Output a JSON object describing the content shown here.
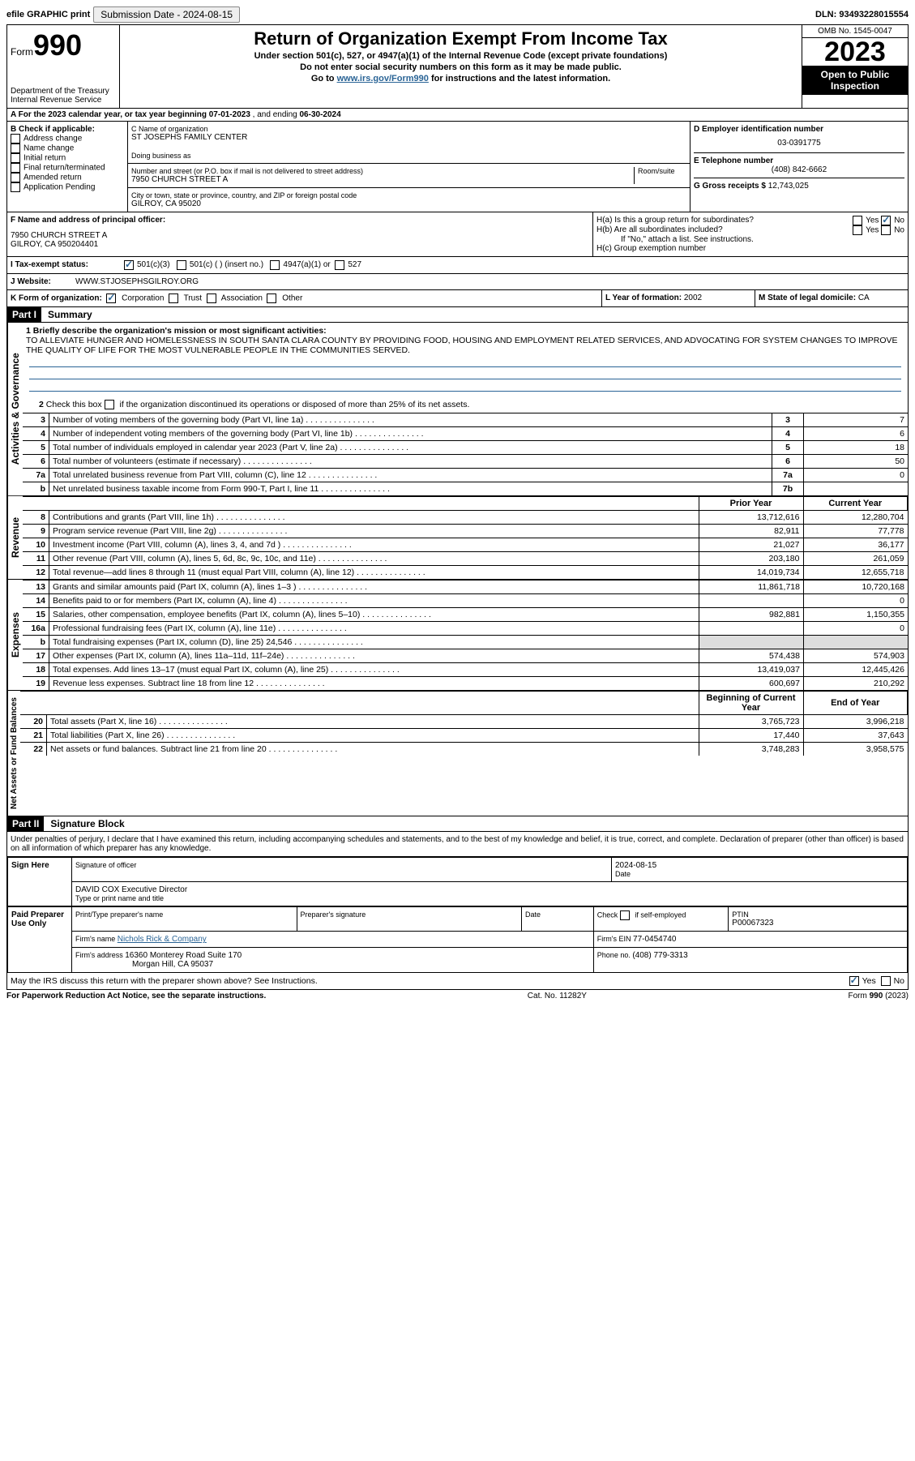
{
  "topbar": {
    "efile_label": "efile GRAPHIC print",
    "submission_label": "Submission Date - 2024-08-15",
    "dln_label": "DLN: 93493228015554"
  },
  "header": {
    "form_label": "Form",
    "form_number": "990",
    "dept": "Department of the Treasury",
    "irs": "Internal Revenue Service",
    "title": "Return of Organization Exempt From Income Tax",
    "subtitle1": "Under section 501(c), 527, or 4947(a)(1) of the Internal Revenue Code (except private foundations)",
    "subtitle2": "Do not enter social security numbers on this form as it may be made public.",
    "subtitle3": "Go to www.irs.gov/Form990 for instructions and the latest information.",
    "omb": "OMB No. 1545-0047",
    "year": "2023",
    "inspection": "Open to Public Inspection"
  },
  "section_a": {
    "text_prefix": "A  For the 2023 calendar year, or tax year beginning ",
    "begin": "07-01-2023",
    "mid": " , and ending ",
    "end": "06-30-2024"
  },
  "section_b": {
    "label": "B Check if applicable:",
    "opts": [
      "Address change",
      "Name change",
      "Initial return",
      "Final return/terminated",
      "Amended return",
      "Application Pending"
    ]
  },
  "section_c": {
    "name_label": "C Name of organization",
    "name": "ST JOSEPHS FAMILY CENTER",
    "dba_label": "Doing business as",
    "addr_label": "Number and street (or P.O. box if mail is not delivered to street address)",
    "room_label": "Room/suite",
    "addr": "7950 CHURCH STREET A",
    "city_label": "City or town, state or province, country, and ZIP or foreign postal code",
    "city": "GILROY, CA  95020"
  },
  "section_d": {
    "label": "D Employer identification number",
    "ein": "03-0391775"
  },
  "section_e": {
    "label": "E Telephone number",
    "phone": "(408) 842-6662"
  },
  "section_g": {
    "label": "G Gross receipts $",
    "val": "12,743,025"
  },
  "section_f": {
    "label": "F Name and address of principal officer:",
    "addr1": "7950 CHURCH STREET A",
    "addr2": "GILROY, CA  950204401"
  },
  "section_h": {
    "a_label": "H(a)  Is this a group return for subordinates?",
    "b_label": "H(b)  Are all subordinates included?",
    "b_note": "If \"No,\" attach a list. See instructions.",
    "c_label": "H(c)  Group exemption number ",
    "yes": "Yes",
    "no": "No"
  },
  "section_i": {
    "label": "I  Tax-exempt status:",
    "opt1": "501(c)(3)",
    "opt2": "501(c) (  ) (insert no.)",
    "opt3": "4947(a)(1) or",
    "opt4": "527"
  },
  "section_j": {
    "label": "J  Website: ",
    "url": "WWW.STJOSEPHSGILROY.ORG"
  },
  "section_k": {
    "label": "K Form of organization:",
    "opts": [
      "Corporation",
      "Trust",
      "Association",
      "Other"
    ]
  },
  "section_l": {
    "label": "L Year of formation: ",
    "val": "2002"
  },
  "section_m": {
    "label": "M State of legal domicile: ",
    "val": "CA"
  },
  "part1": {
    "header": "Part I",
    "title": "Summary",
    "q1_label": "1  Briefly describe the organization's mission or most significant activities:",
    "mission": "TO ALLEVIATE HUNGER AND HOMELESSNESS IN SOUTH SANTA CLARA COUNTY BY PROVIDING FOOD, HOUSING AND EMPLOYMENT RELATED SERVICES, AND ADVOCATING FOR SYSTEM CHANGES TO IMPROVE THE QUALITY OF LIFE FOR THE MOST VULNERABLE PEOPLE IN THE COMMUNITIES SERVED.",
    "q2": "Check this box        if the organization discontinued its operations or disposed of more than 25% of its net assets.",
    "governance_label": "Activities & Governance",
    "revenue_label": "Revenue",
    "expenses_label": "Expenses",
    "netassets_label": "Net Assets or Fund Balances",
    "prior_year": "Prior Year",
    "current_year": "Current Year",
    "beg_year": "Beginning of Current Year",
    "end_year": "End of Year",
    "lines_gov": [
      {
        "n": "3",
        "desc": "Number of voting members of the governing body (Part VI, line 1a)",
        "box": "3",
        "val": "7"
      },
      {
        "n": "4",
        "desc": "Number of independent voting members of the governing body (Part VI, line 1b)",
        "box": "4",
        "val": "6"
      },
      {
        "n": "5",
        "desc": "Total number of individuals employed in calendar year 2023 (Part V, line 2a)",
        "box": "5",
        "val": "18"
      },
      {
        "n": "6",
        "desc": "Total number of volunteers (estimate if necessary)",
        "box": "6",
        "val": "50"
      },
      {
        "n": "7a",
        "desc": "Total unrelated business revenue from Part VIII, column (C), line 12",
        "box": "7a",
        "val": "0"
      },
      {
        "n": "b",
        "desc": "Net unrelated business taxable income from Form 990-T, Part I, line 11",
        "box": "7b",
        "val": ""
      }
    ],
    "lines_rev": [
      {
        "n": "8",
        "desc": "Contributions and grants (Part VIII, line 1h)",
        "prior": "13,712,616",
        "curr": "12,280,704"
      },
      {
        "n": "9",
        "desc": "Program service revenue (Part VIII, line 2g)",
        "prior": "82,911",
        "curr": "77,778"
      },
      {
        "n": "10",
        "desc": "Investment income (Part VIII, column (A), lines 3, 4, and 7d )",
        "prior": "21,027",
        "curr": "36,177"
      },
      {
        "n": "11",
        "desc": "Other revenue (Part VIII, column (A), lines 5, 6d, 8c, 9c, 10c, and 11e)",
        "prior": "203,180",
        "curr": "261,059"
      },
      {
        "n": "12",
        "desc": "Total revenue—add lines 8 through 11 (must equal Part VIII, column (A), line 12)",
        "prior": "14,019,734",
        "curr": "12,655,718"
      }
    ],
    "lines_exp": [
      {
        "n": "13",
        "desc": "Grants and similar amounts paid (Part IX, column (A), lines 1–3 )",
        "prior": "11,861,718",
        "curr": "10,720,168"
      },
      {
        "n": "14",
        "desc": "Benefits paid to or for members (Part IX, column (A), line 4)",
        "prior": "",
        "curr": "0"
      },
      {
        "n": "15",
        "desc": "Salaries, other compensation, employee benefits (Part IX, column (A), lines 5–10)",
        "prior": "982,881",
        "curr": "1,150,355"
      },
      {
        "n": "16a",
        "desc": "Professional fundraising fees (Part IX, column (A), line 11e)",
        "prior": "",
        "curr": "0"
      },
      {
        "n": "b",
        "desc": "Total fundraising expenses (Part IX, column (D), line 25) 24,546",
        "prior": "__shaded__",
        "curr": "__shaded__"
      },
      {
        "n": "17",
        "desc": "Other expenses (Part IX, column (A), lines 11a–11d, 11f–24e)",
        "prior": "574,438",
        "curr": "574,903"
      },
      {
        "n": "18",
        "desc": "Total expenses. Add lines 13–17 (must equal Part IX, column (A), line 25)",
        "prior": "13,419,037",
        "curr": "12,445,426"
      },
      {
        "n": "19",
        "desc": "Revenue less expenses. Subtract line 18 from line 12",
        "prior": "600,697",
        "curr": "210,292"
      }
    ],
    "lines_net": [
      {
        "n": "20",
        "desc": "Total assets (Part X, line 16)",
        "prior": "3,765,723",
        "curr": "3,996,218"
      },
      {
        "n": "21",
        "desc": "Total liabilities (Part X, line 26)",
        "prior": "17,440",
        "curr": "37,643"
      },
      {
        "n": "22",
        "desc": "Net assets or fund balances. Subtract line 21 from line 20",
        "prior": "3,748,283",
        "curr": "3,958,575"
      }
    ]
  },
  "part2": {
    "header": "Part II",
    "title": "Signature Block",
    "penalty": "Under penalties of perjury, I declare that I have examined this return, including accompanying schedules and statements, and to the best of my knowledge and belief, it is true, correct, and complete. Declaration of preparer (other than officer) is based on all information of which preparer has any knowledge.",
    "sign_here": "Sign Here",
    "sig_officer": "Signature of officer",
    "date_label": "Date",
    "sig_date": "2024-08-15",
    "officer_name": "DAVID COX  Executive Director",
    "type_label": "Type or print name and title",
    "paid_preparer": "Paid Preparer Use Only",
    "print_name_label": "Print/Type preparer's name",
    "prep_sig_label": "Preparer's signature",
    "check_if": "Check         if self-employed",
    "ptin_label": "PTIN",
    "ptin": "P00067323",
    "firm_name_label": "Firm's name    ",
    "firm_name": "Nichols Rick & Company",
    "firm_ein_label": "Firm's EIN  ",
    "firm_ein": "77-0454740",
    "firm_addr_label": "Firm's address ",
    "firm_addr1": "16360 Monterey Road Suite 170",
    "firm_addr2": "Morgan Hill, CA  95037",
    "phone_label": "Phone no. ",
    "phone": "(408) 779-3313",
    "discuss": "May the IRS discuss this return with the preparer shown above? See Instructions.",
    "yes": "Yes",
    "no": "No"
  },
  "footer": {
    "left": "For Paperwork Reduction Act Notice, see the separate instructions.",
    "center": "Cat. No. 11282Y",
    "right": "Form 990 (2023)"
  }
}
